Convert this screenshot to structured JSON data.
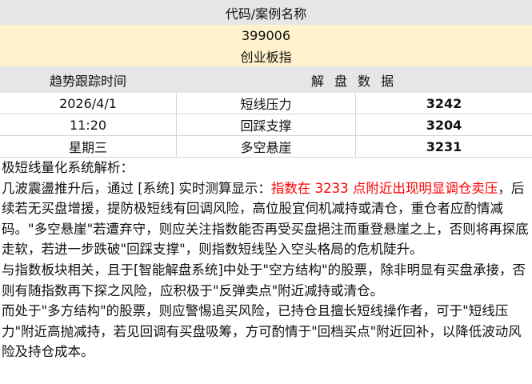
{
  "header": {
    "title": "代码/案例名称",
    "code": "399006",
    "name": "创业板指"
  },
  "columns": {
    "time": "趋势跟踪时间",
    "data": "解 盘 数 据"
  },
  "rows": [
    {
      "time": "2026/4/1",
      "label": "短线压力",
      "value": "3242"
    },
    {
      "time": "11:20",
      "label": "回踩支撑",
      "value": "3204"
    },
    {
      "time": "星期三",
      "label": "多空悬崖",
      "value": "3231"
    }
  ],
  "analysis": {
    "title": "极短线量化系统解析：",
    "p1_pre": "几波震盪推升后，通过 [系统] 实时测算显示：",
    "p1_red": "指数在 3233 点附近出现明显调仓卖压",
    "p1_post": "，后续若无买盘增援，提防极短线有回调风险，高位股宜伺机减持或清仓，重仓者应酌情减码。\"多空悬崖\"若遭弃守，则应关注指数能否再受买盘挹注而重登悬崖之上，否则将再探底走软，若进一步跌破\"回踩支撑\"，则指数短线坠入空头格局的危机陡升。",
    "p2": "与指数板块相关，且于[智能解盘系统]中处于\"空方结构\"的股票，除非明显有买盘承接，否则有随指数再下探之风险，应积极于\"反弹卖点\"附近减持或清仓。",
    "p3": "而处于\"多方结构\"的股票，则应警惕追买风险，已持仓且擅长短线操作者，可于\"短线压力\"附近高抛减持，若见回调有买盘吸筹，方可酌情于\"回档买点\"附近回补，以降低波动风险及持仓成本。"
  },
  "colors": {
    "highlight": "#ff0000",
    "header_bg": "#e6e6e6",
    "code_bg": "#fff2cc"
  }
}
